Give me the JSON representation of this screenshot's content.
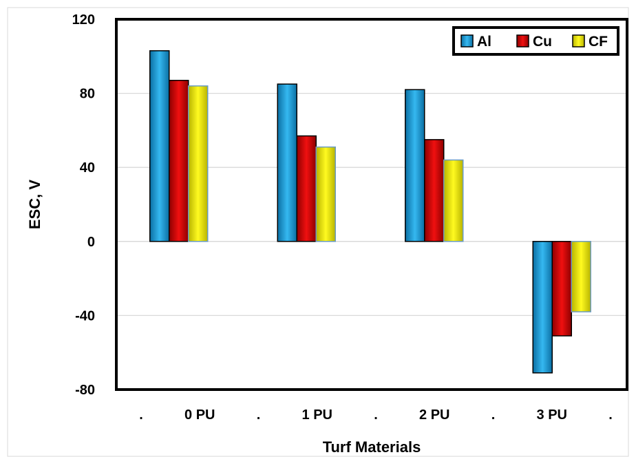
{
  "chart_data": {
    "type": "bar",
    "xlabel": "Turf Materials",
    "ylabel": "ESC, V",
    "categories": [
      "0 PU",
      "1 PU",
      "2 PU",
      "3 PU"
    ],
    "x_tick_labels": [
      ".",
      "0 PU",
      ".",
      "1 PU",
      ".",
      "2 PU",
      ".",
      "3 PU",
      "."
    ],
    "y_ticks": [
      120,
      80,
      40,
      0,
      -40,
      -80
    ],
    "ylim": [
      -80,
      120
    ],
    "grid": true,
    "legend_position": "top-right",
    "series": [
      {
        "name": "Al",
        "color": "#1E9FD6",
        "values": [
          103,
          85,
          82,
          -71
        ]
      },
      {
        "name": "Cu",
        "color": "#D90000",
        "values": [
          87,
          57,
          55,
          -51
        ]
      },
      {
        "name": "CF",
        "color": "#F5F000",
        "values": [
          84,
          51,
          44,
          -38
        ]
      }
    ]
  }
}
